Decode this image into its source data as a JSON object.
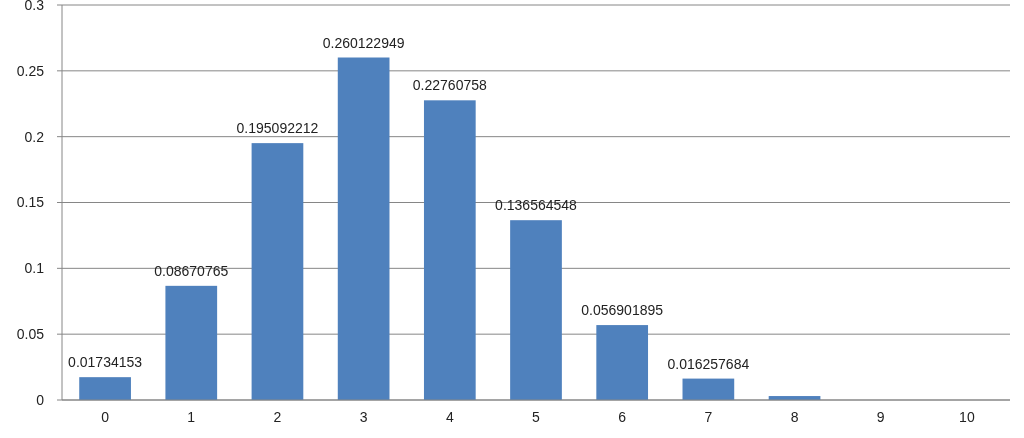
{
  "chart_data": {
    "type": "bar",
    "categories": [
      "0",
      "1",
      "2",
      "3",
      "4",
      "5",
      "6",
      "7",
      "8",
      "9",
      "10"
    ],
    "values": [
      0.01734153,
      0.08670765,
      0.195092212,
      0.260122949,
      0.22760758,
      0.136564548,
      0.056901895,
      0.016257684,
      0.003,
      null,
      0
    ],
    "value_labels": [
      "0.01734153",
      "0.08670765",
      "0.195092212",
      "0.260122949",
      "0.22760758",
      "0.136564548",
      "0.056901895",
      "0.016257684",
      null,
      null,
      null
    ],
    "color": "#4f81bd",
    "ylim": [
      0,
      0.3
    ],
    "yticks": [
      0,
      0.05,
      0.1,
      0.15,
      0.2,
      0.25,
      0.3
    ],
    "grid": "y"
  }
}
